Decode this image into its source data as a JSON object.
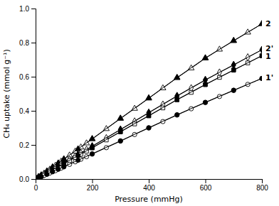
{
  "chart_data": {
    "type": "line",
    "xlabel": "Pressure (mmHg)",
    "ylabel": "CH₄ uptake (mmol g⁻¹)",
    "xlim": [
      0,
      800
    ],
    "ylim": [
      0,
      1.0
    ],
    "xticks": [
      0,
      200,
      400,
      600,
      800
    ],
    "yticks": [
      {
        "value": 0.0,
        "label": "0.0"
      },
      0.2,
      0.4,
      0.6,
      0.8,
      {
        "value": 1.0,
        "label": "1.0"
      }
    ],
    "grid": false,
    "series": [
      {
        "name": "2",
        "color": "black",
        "adsorption": {
          "marker": "triangle-open",
          "x": [
            0,
            10,
            20,
            30,
            40,
            50,
            60,
            70,
            80,
            90,
            100,
            120,
            140,
            160,
            180,
            200,
            250,
            300,
            350,
            400,
            450,
            500,
            550,
            600,
            650,
            700,
            750,
            800
          ],
          "values": [
            0.0,
            0.011,
            0.022,
            0.033,
            0.044,
            0.056,
            0.068,
            0.079,
            0.091,
            0.103,
            0.115,
            0.139,
            0.162,
            0.186,
            0.21,
            0.234,
            0.294,
            0.354,
            0.413,
            0.473,
            0.533,
            0.593,
            0.65,
            0.708,
            0.76,
            0.81,
            0.86,
            0.91
          ]
        },
        "desorption": {
          "marker": "triangle",
          "x": [
            800,
            700,
            600,
            500,
            400,
            300,
            200,
            150,
            100,
            80,
            60,
            40,
            20,
            10,
            0
          ],
          "values": [
            0.91,
            0.812,
            0.71,
            0.595,
            0.475,
            0.356,
            0.236,
            0.176,
            0.117,
            0.093,
            0.07,
            0.046,
            0.023,
            0.012,
            0.0
          ]
        }
      },
      {
        "name": "2'",
        "color": "black",
        "adsorption": {
          "marker": "diamond-open",
          "x": [
            0,
            10,
            20,
            30,
            40,
            50,
            60,
            70,
            80,
            90,
            100,
            120,
            140,
            160,
            180,
            200,
            250,
            300,
            350,
            400,
            450,
            500,
            550,
            600,
            650,
            700,
            750,
            800
          ],
          "values": [
            0.0,
            0.009,
            0.018,
            0.028,
            0.037,
            0.046,
            0.056,
            0.065,
            0.075,
            0.084,
            0.094,
            0.113,
            0.133,
            0.152,
            0.172,
            0.191,
            0.24,
            0.289,
            0.338,
            0.388,
            0.437,
            0.486,
            0.533,
            0.58,
            0.625,
            0.668,
            0.714,
            0.758
          ]
        },
        "desorption": {
          "marker": "diamond",
          "x": [
            800,
            700,
            600,
            500,
            400,
            300,
            200,
            150,
            100,
            80,
            60,
            40,
            20,
            10,
            0
          ],
          "values": [
            0.758,
            0.67,
            0.582,
            0.488,
            0.39,
            0.291,
            0.193,
            0.144,
            0.096,
            0.077,
            0.058,
            0.038,
            0.019,
            0.01,
            0.0
          ]
        }
      },
      {
        "name": "1",
        "color": "black",
        "adsorption": {
          "marker": "square-open",
          "x": [
            0,
            10,
            20,
            30,
            40,
            50,
            60,
            70,
            80,
            90,
            100,
            120,
            140,
            160,
            180,
            200,
            250,
            300,
            350,
            400,
            450,
            500,
            550,
            600,
            650,
            700,
            750,
            800
          ],
          "values": [
            0.0,
            0.009,
            0.017,
            0.026,
            0.035,
            0.044,
            0.053,
            0.062,
            0.071,
            0.08,
            0.089,
            0.108,
            0.126,
            0.145,
            0.163,
            0.182,
            0.229,
            0.276,
            0.323,
            0.37,
            0.417,
            0.464,
            0.508,
            0.553,
            0.596,
            0.638,
            0.681,
            0.723
          ]
        },
        "desorption": {
          "marker": "square",
          "x": [
            800,
            700,
            600,
            500,
            400,
            300,
            200,
            150,
            100,
            80,
            60,
            40,
            20,
            10,
            0
          ],
          "values": [
            0.723,
            0.64,
            0.555,
            0.466,
            0.372,
            0.278,
            0.184,
            0.137,
            0.091,
            0.073,
            0.055,
            0.036,
            0.018,
            0.009,
            0.0
          ]
        }
      },
      {
        "name": "1'",
        "color": "black",
        "adsorption": {
          "marker": "circle-open",
          "x": [
            0,
            10,
            20,
            30,
            40,
            50,
            60,
            70,
            80,
            90,
            100,
            120,
            140,
            160,
            180,
            200,
            250,
            300,
            350,
            400,
            450,
            500,
            550,
            600,
            650,
            700,
            750,
            800
          ],
          "values": [
            0.0,
            0.007,
            0.014,
            0.021,
            0.028,
            0.035,
            0.042,
            0.049,
            0.057,
            0.064,
            0.071,
            0.086,
            0.101,
            0.116,
            0.131,
            0.146,
            0.184,
            0.222,
            0.261,
            0.299,
            0.337,
            0.375,
            0.412,
            0.448,
            0.484,
            0.519,
            0.555,
            0.59
          ]
        },
        "desorption": {
          "marker": "circle",
          "x": [
            800,
            700,
            600,
            500,
            400,
            300,
            200,
            150,
            100,
            80,
            60,
            40,
            20,
            10,
            0
          ],
          "values": [
            0.59,
            0.521,
            0.45,
            0.377,
            0.301,
            0.224,
            0.148,
            0.11,
            0.073,
            0.058,
            0.044,
            0.028,
            0.014,
            0.007,
            0.0
          ]
        }
      }
    ]
  }
}
